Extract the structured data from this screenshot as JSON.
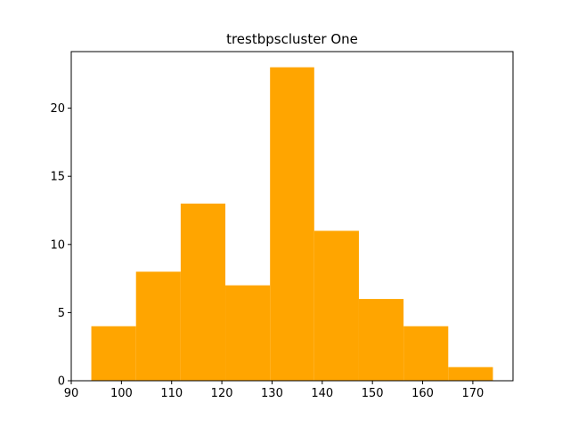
{
  "chart_data": {
    "type": "bar",
    "title": "trestbpscluster One",
    "xlabel": "",
    "ylabel": "",
    "bar_color": "#ffa500",
    "bins": [
      {
        "start": 94.0,
        "end": 102.9,
        "count": 4
      },
      {
        "start": 102.9,
        "end": 111.8,
        "count": 8
      },
      {
        "start": 111.8,
        "end": 120.7,
        "count": 13
      },
      {
        "start": 120.7,
        "end": 129.6,
        "count": 7
      },
      {
        "start": 129.6,
        "end": 138.4,
        "count": 23
      },
      {
        "start": 138.4,
        "end": 147.3,
        "count": 11
      },
      {
        "start": 147.3,
        "end": 156.2,
        "count": 6
      },
      {
        "start": 156.2,
        "end": 165.1,
        "count": 4
      },
      {
        "start": 165.1,
        "end": 174.0,
        "count": 1
      }
    ],
    "xlim": [
      90,
      178
    ],
    "ylim": [
      0,
      24.15
    ],
    "xticks": [
      90,
      100,
      110,
      120,
      130,
      140,
      150,
      160,
      170
    ],
    "xtick_labels": [
      "90",
      "100",
      "110",
      "120",
      "130",
      "140",
      "150",
      "160",
      "170"
    ],
    "yticks": [
      0,
      5,
      10,
      15,
      20
    ],
    "ytick_labels": [
      "0",
      "5",
      "10",
      "15",
      "20"
    ],
    "grid": false
  }
}
